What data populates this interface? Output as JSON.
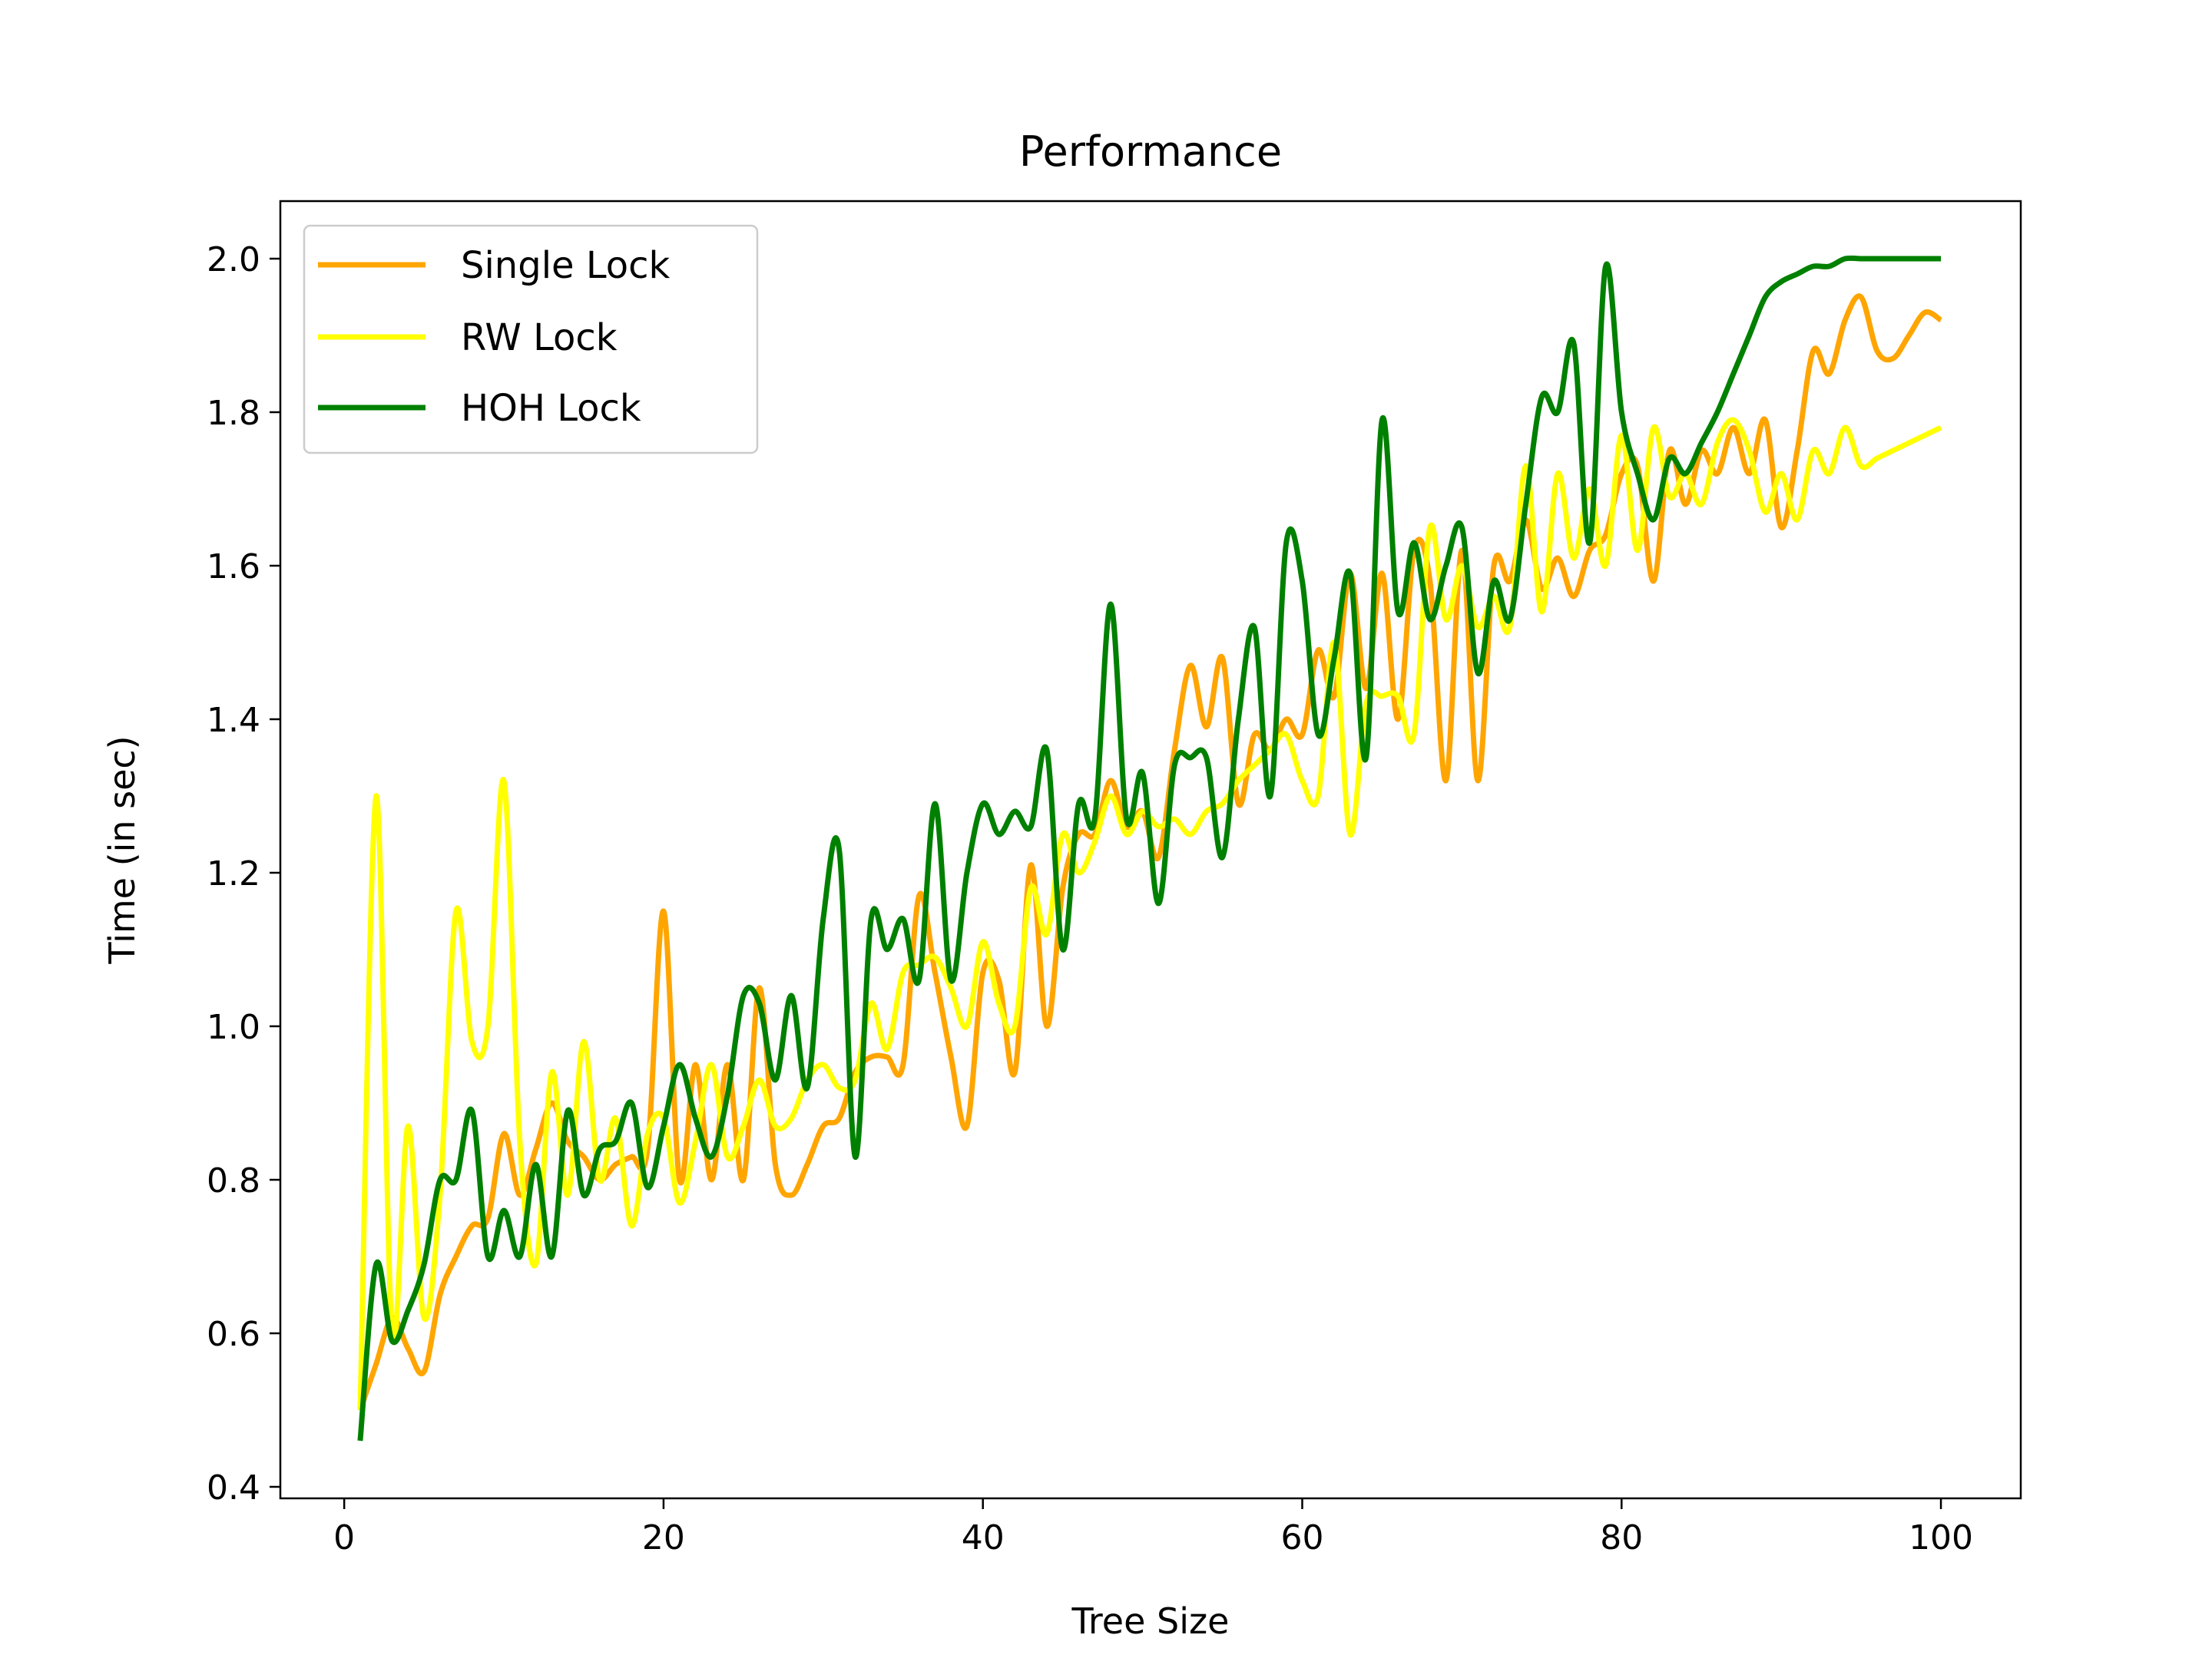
{
  "chart_data": {
    "type": "line",
    "title": "Performance",
    "xlabel": "Tree Size",
    "ylabel": "Time (in sec)",
    "xlim": [
      -4,
      105
    ],
    "ylim": [
      0.385,
      2.075
    ],
    "xticks": [
      0,
      20,
      40,
      60,
      80,
      100
    ],
    "yticks": [
      0.4,
      0.6,
      0.8,
      1.0,
      1.2,
      1.4,
      1.6,
      1.8,
      2.0
    ],
    "xtick_labels": [
      "0",
      "20",
      "40",
      "60",
      "80",
      "100"
    ],
    "ytick_labels": [
      "0.4",
      "0.6",
      "0.8",
      "1.0",
      "1.2",
      "1.4",
      "1.6",
      "1.8",
      "2.0"
    ],
    "grid": false,
    "legend_position": "upper-left",
    "smoothing": "cubic spline through integer tree sizes 1-100",
    "series": [
      {
        "name": "Single Lock",
        "color": "#FFA500",
        "x_start": 1,
        "x_step": 1,
        "values": [
          0.5,
          0.56,
          0.62,
          0.58,
          0.55,
          0.65,
          0.7,
          0.74,
          0.75,
          0.86,
          0.78,
          0.84,
          0.9,
          0.85,
          0.83,
          0.8,
          0.82,
          0.83,
          0.84,
          1.15,
          0.8,
          0.95,
          0.8,
          0.95,
          0.8,
          1.05,
          0.82,
          0.78,
          0.82,
          0.87,
          0.88,
          0.94,
          0.96,
          0.96,
          0.95,
          1.17,
          1.07,
          0.96,
          0.87,
          1.07,
          1.06,
          0.94,
          1.21,
          1.0,
          1.18,
          1.25,
          1.25,
          1.32,
          1.26,
          1.28,
          1.22,
          1.36,
          1.47,
          1.39,
          1.48,
          1.29,
          1.38,
          1.36,
          1.4,
          1.38,
          1.49,
          1.43,
          1.59,
          1.44,
          1.59,
          1.4,
          1.62,
          1.58,
          1.32,
          1.62,
          1.32,
          1.6,
          1.58,
          1.66,
          1.57,
          1.61,
          1.56,
          1.62,
          1.64,
          1.72,
          1.73,
          1.58,
          1.75,
          1.68,
          1.75,
          1.72,
          1.78,
          1.72,
          1.79,
          1.65,
          1.75,
          1.88,
          1.85,
          1.92,
          1.95,
          1.88,
          1.87,
          1.9,
          1.93,
          1.92
        ]
      },
      {
        "name": "RW Lock",
        "color": "#FFFF00",
        "x_start": 1,
        "x_step": 1,
        "values": [
          0.5,
          1.3,
          0.6,
          0.87,
          0.62,
          0.78,
          1.15,
          0.98,
          1.0,
          1.32,
          0.85,
          0.69,
          0.94,
          0.78,
          0.98,
          0.8,
          0.88,
          0.74,
          0.86,
          0.88,
          0.77,
          0.85,
          0.95,
          0.83,
          0.87,
          0.93,
          0.87,
          0.88,
          0.93,
          0.95,
          0.92,
          0.93,
          1.03,
          0.97,
          1.07,
          1.08,
          1.09,
          1.05,
          1.0,
          1.11,
          1.03,
          1.0,
          1.18,
          1.12,
          1.25,
          1.2,
          1.24,
          1.3,
          1.25,
          1.28,
          1.26,
          1.27,
          1.25,
          1.28,
          1.29,
          1.32,
          1.34,
          1.36,
          1.38,
          1.32,
          1.3,
          1.5,
          1.25,
          1.42,
          1.43,
          1.43,
          1.38,
          1.65,
          1.53,
          1.6,
          1.52,
          1.56,
          1.52,
          1.73,
          1.54,
          1.72,
          1.61,
          1.7,
          1.6,
          1.77,
          1.62,
          1.78,
          1.69,
          1.72,
          1.68,
          1.76,
          1.79,
          1.75,
          1.67,
          1.72,
          1.66,
          1.75,
          1.72,
          1.78,
          1.73,
          1.74,
          1.75,
          1.76,
          1.77,
          1.78
        ]
      },
      {
        "name": "HOH Lock",
        "color": "#008000",
        "x_start": 1,
        "x_step": 1,
        "values": [
          0.46,
          0.69,
          0.59,
          0.63,
          0.69,
          0.8,
          0.8,
          0.89,
          0.7,
          0.76,
          0.7,
          0.82,
          0.7,
          0.89,
          0.78,
          0.84,
          0.85,
          0.9,
          0.79,
          0.87,
          0.95,
          0.88,
          0.83,
          0.91,
          1.04,
          1.03,
          0.93,
          1.04,
          0.92,
          1.14,
          1.23,
          0.83,
          1.14,
          1.1,
          1.14,
          1.06,
          1.29,
          1.06,
          1.2,
          1.29,
          1.25,
          1.28,
          1.26,
          1.36,
          1.1,
          1.29,
          1.27,
          1.55,
          1.27,
          1.33,
          1.16,
          1.34,
          1.35,
          1.35,
          1.22,
          1.4,
          1.52,
          1.3,
          1.63,
          1.58,
          1.38,
          1.48,
          1.59,
          1.35,
          1.79,
          1.54,
          1.63,
          1.53,
          1.6,
          1.65,
          1.46,
          1.58,
          1.53,
          1.68,
          1.82,
          1.8,
          1.89,
          1.63,
          1.99,
          1.8,
          1.72,
          1.66,
          1.74,
          1.72,
          1.76,
          1.8,
          1.85,
          1.9,
          1.95,
          1.97,
          1.98,
          1.99,
          1.99,
          2.0,
          2.0,
          2.0,
          2.0,
          2.0,
          2.0,
          2.0
        ]
      }
    ]
  }
}
